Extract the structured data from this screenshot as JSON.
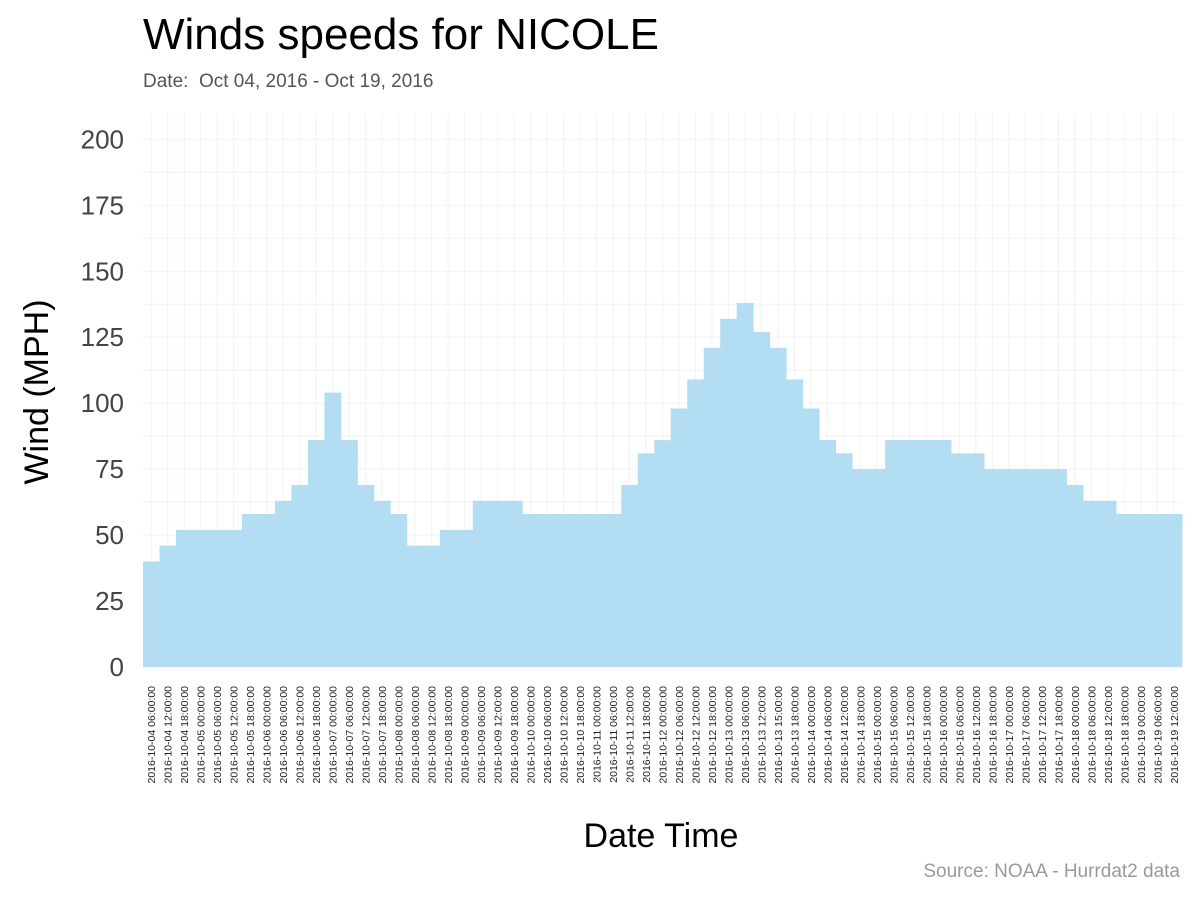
{
  "chart_data": {
    "type": "bar",
    "title": "Winds speeds for NICOLE",
    "subtitle": "Date:  Oct 04, 2016 - Oct 19, 2016",
    "source": "Source: NOAA - Hurrdat2 data",
    "xlabel": "Date Time",
    "ylabel": "Wind (MPH)",
    "ylim": [
      0,
      210
    ],
    "yticks": [
      0,
      25,
      50,
      75,
      100,
      125,
      150,
      175,
      200
    ],
    "grid": true,
    "bar_color": "#b3ddf3",
    "categories": [
      "2016-10-04 06:00:00",
      "2016-10-04 12:00:00",
      "2016-10-04 18:00:00",
      "2016-10-05 00:00:00",
      "2016-10-05 06:00:00",
      "2016-10-05 12:00:00",
      "2016-10-05 18:00:00",
      "2016-10-06 00:00:00",
      "2016-10-06 06:00:00",
      "2016-10-06 12:00:00",
      "2016-10-06 18:00:00",
      "2016-10-07 00:00:00",
      "2016-10-07 06:00:00",
      "2016-10-07 12:00:00",
      "2016-10-07 18:00:00",
      "2016-10-08 00:00:00",
      "2016-10-08 06:00:00",
      "2016-10-08 12:00:00",
      "2016-10-08 18:00:00",
      "2016-10-09 00:00:00",
      "2016-10-09 06:00:00",
      "2016-10-09 12:00:00",
      "2016-10-09 18:00:00",
      "2016-10-10 00:00:00",
      "2016-10-10 06:00:00",
      "2016-10-10 12:00:00",
      "2016-10-10 18:00:00",
      "2016-10-11 00:00:00",
      "2016-10-11 06:00:00",
      "2016-10-11 12:00:00",
      "2016-10-11 18:00:00",
      "2016-10-12 00:00:00",
      "2016-10-12 06:00:00",
      "2016-10-12 12:00:00",
      "2016-10-12 18:00:00",
      "2016-10-13 00:00:00",
      "2016-10-13 06:00:00",
      "2016-10-13 12:00:00",
      "2016-10-13 15:00:00",
      "2016-10-13 18:00:00",
      "2016-10-14 00:00:00",
      "2016-10-14 06:00:00",
      "2016-10-14 12:00:00",
      "2016-10-14 18:00:00",
      "2016-10-15 00:00:00",
      "2016-10-15 06:00:00",
      "2016-10-15 12:00:00",
      "2016-10-15 18:00:00",
      "2016-10-16 00:00:00",
      "2016-10-16 06:00:00",
      "2016-10-16 12:00:00",
      "2016-10-16 18:00:00",
      "2016-10-17 00:00:00",
      "2016-10-17 06:00:00",
      "2016-10-17 12:00:00",
      "2016-10-17 18:00:00",
      "2016-10-18 00:00:00",
      "2016-10-18 06:00:00",
      "2016-10-18 12:00:00",
      "2016-10-18 18:00:00",
      "2016-10-19 00:00:00",
      "2016-10-19 06:00:00",
      "2016-10-19 12:00:00"
    ],
    "values": [
      40,
      46,
      52,
      52,
      52,
      52,
      58,
      58,
      63,
      69,
      86,
      104,
      86,
      69,
      63,
      58,
      46,
      46,
      52,
      52,
      63,
      63,
      63,
      58,
      58,
      58,
      58,
      58,
      58,
      69,
      81,
      86,
      98,
      109,
      121,
      132,
      138,
      127,
      121,
      109,
      98,
      86,
      81,
      75,
      75,
      86,
      86,
      86,
      86,
      81,
      81,
      75,
      75,
      75,
      75,
      75,
      69,
      63,
      63,
      58,
      58,
      58,
      58
    ]
  }
}
